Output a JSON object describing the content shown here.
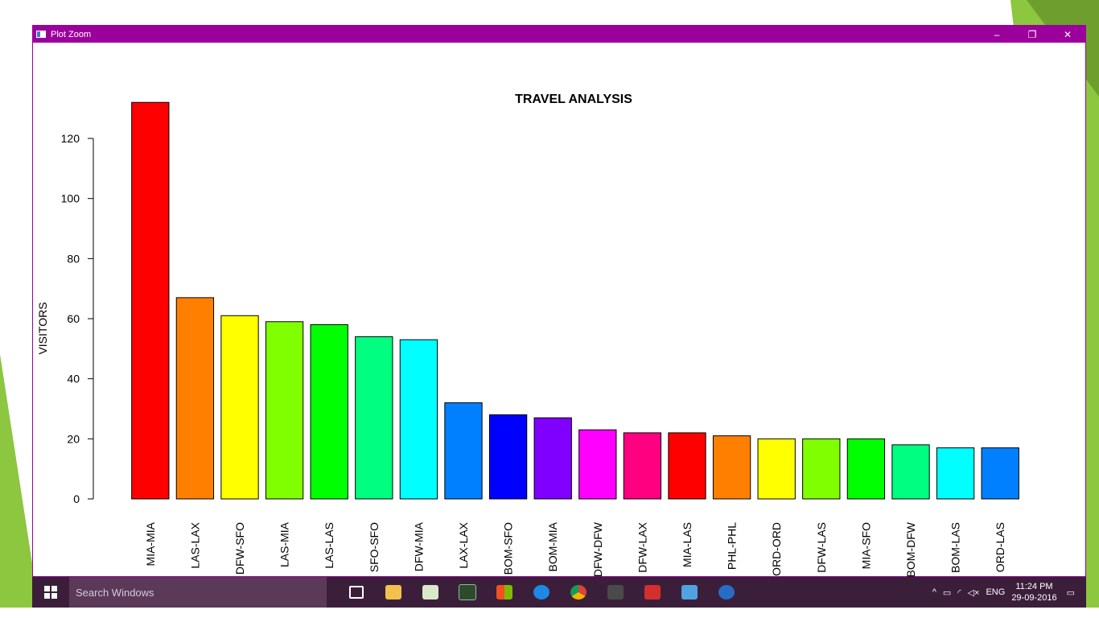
{
  "window": {
    "title": "Plot Zoom",
    "minimize_label": "–",
    "restore_label": "❐",
    "close_label": "✕"
  },
  "taskbar": {
    "search_placeholder": "Search Windows",
    "time": "11:24 PM",
    "date": "29-09-2016",
    "language": "ENG",
    "icons": [
      "task-view-icon",
      "file-explorer-icon",
      "notepad-icon",
      "terminal-icon",
      "store-icon",
      "edge-icon",
      "chrome-icon",
      "sublime-icon",
      "acrobat-icon",
      "control-panel-icon",
      "r-icon"
    ]
  },
  "colors": {
    "window_border": "#9c009c",
    "taskbar": "#3b1f3a",
    "background_green": "#8dc63f"
  },
  "chart_data": {
    "type": "bar",
    "title": "TRAVEL ANALYSIS",
    "xlabel": "",
    "ylabel": "VISITORS",
    "ylim": [
      0,
      132
    ],
    "yticks": [
      0,
      20,
      40,
      60,
      80,
      100,
      120
    ],
    "categories": [
      "MIA-MIA",
      "LAS-LAX",
      "DFW-SFO",
      "LAS-MIA",
      "LAS-LAS",
      "SFO-SFO",
      "DFW-MIA",
      "LAX-LAX",
      "BOM-SFO",
      "BOM-MIA",
      "DFW-DFW",
      "DFW-LAX",
      "MIA-LAS",
      "PHL-PHL",
      "ORD-ORD",
      "DFW-LAS",
      "MIA-SFO",
      "BOM-DFW",
      "BOM-LAS",
      "ORD-LAS"
    ],
    "values": [
      132,
      67,
      61,
      59,
      58,
      54,
      53,
      32,
      28,
      27,
      23,
      22,
      22,
      21,
      20,
      20,
      20,
      18,
      17,
      17
    ],
    "bar_colors": [
      "#ff0000",
      "#ff8000",
      "#ffff00",
      "#80ff00",
      "#00ff00",
      "#00ff80",
      "#00ffff",
      "#0080ff",
      "#0000ff",
      "#8000ff",
      "#ff00ff",
      "#ff0080",
      "#ff0000",
      "#ff8000",
      "#ffff00",
      "#80ff00",
      "#00ff00",
      "#00ff80",
      "#00ffff",
      "#0080ff"
    ],
    "grid": false,
    "legend": "none"
  }
}
